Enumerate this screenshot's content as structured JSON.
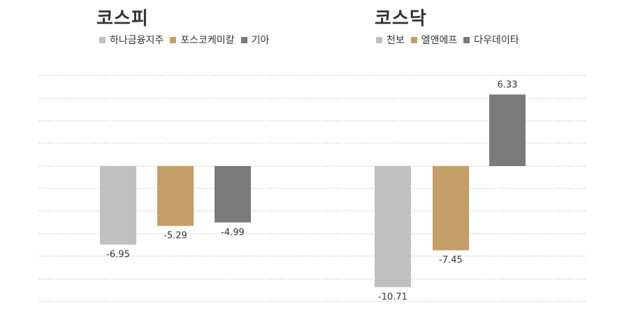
{
  "chart_data": [
    {
      "type": "bar",
      "title": "코스피",
      "categories": [
        "하나금융지주",
        "포스코케미칼",
        "기아"
      ],
      "values": [
        -6.95,
        -5.29,
        -4.99
      ],
      "value_labels": [
        "-6.95",
        "-5.29",
        "-4.99"
      ],
      "colors": [
        "#c0c0c0",
        "#c59d66",
        "#7a7a7a"
      ],
      "ylim": [
        -12,
        12
      ],
      "grid": true,
      "legend": "top-left"
    },
    {
      "type": "bar",
      "title": "코스닥",
      "categories": [
        "천보",
        "엘앤에프",
        "다우데이타"
      ],
      "values": [
        -10.71,
        -7.45,
        6.33
      ],
      "value_labels": [
        "-10.71",
        "-7.45",
        "6.33"
      ],
      "colors": [
        "#c0c0c0",
        "#c59d66",
        "#7a7a7a"
      ],
      "ylim": [
        -12,
        12
      ],
      "grid": true,
      "legend": "top-left"
    }
  ],
  "colors": {
    "gridline": "#c8c8c8",
    "text": "#333333"
  }
}
